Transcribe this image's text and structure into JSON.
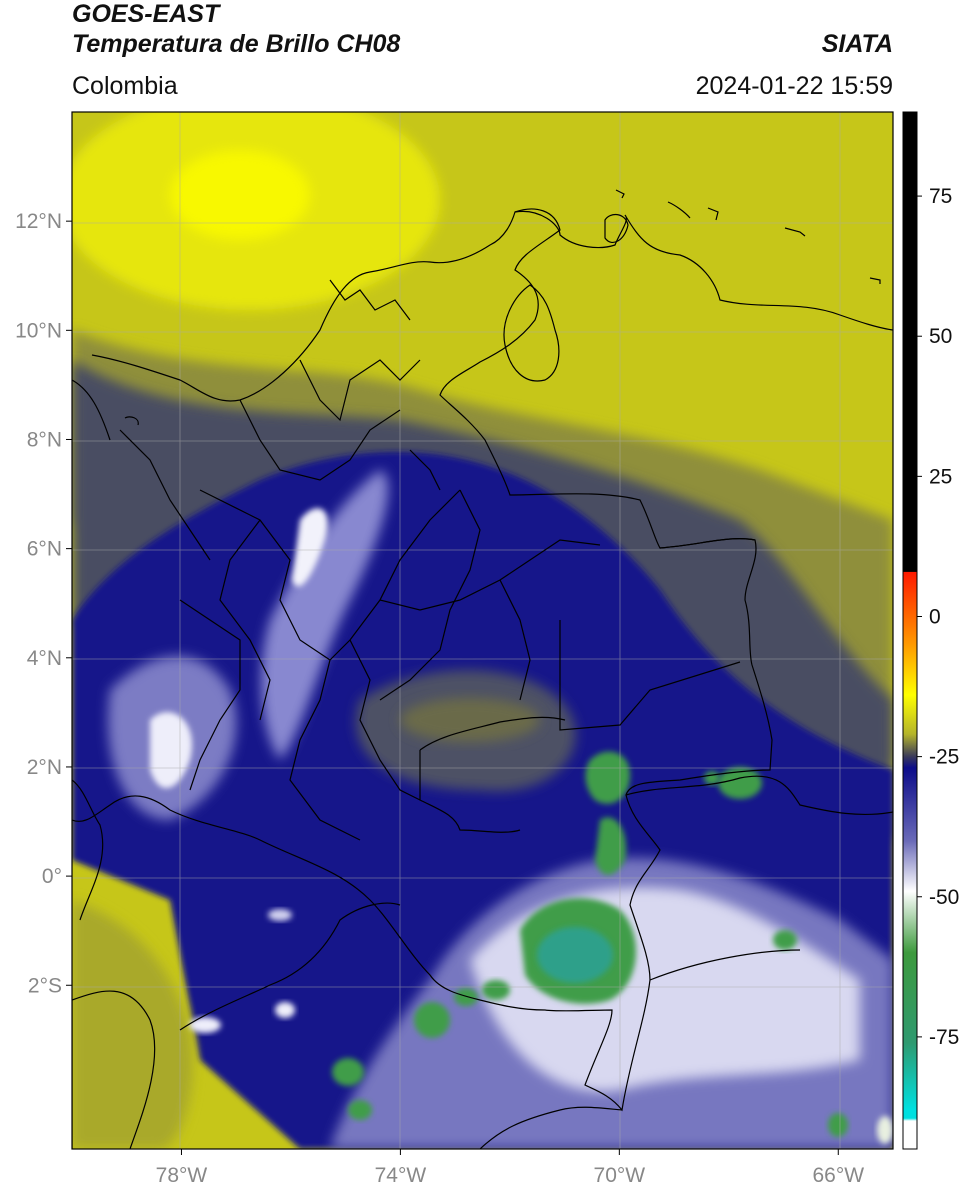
{
  "header": {
    "satellite": "GOES-EAST",
    "product": "Temperatura de Brillo CH08",
    "region": "Colombia",
    "agency": "SIATA",
    "datetime": "2024-01-22 15:59"
  },
  "axes": {
    "lat_ticks": [
      {
        "value": 12,
        "label": "12°N"
      },
      {
        "value": 10,
        "label": "10°N"
      },
      {
        "value": 8,
        "label": "8°N"
      },
      {
        "value": 6,
        "label": "6°N"
      },
      {
        "value": 4,
        "label": "4°N"
      },
      {
        "value": 2,
        "label": "2°N"
      },
      {
        "value": 0,
        "label": "0°"
      },
      {
        "value": -2,
        "label": "2°S"
      }
    ],
    "lon_ticks": [
      {
        "value": -78,
        "label": "78°W"
      },
      {
        "value": -74,
        "label": "74°W"
      },
      {
        "value": -70,
        "label": "70°W"
      },
      {
        "value": -66,
        "label": "66°W"
      }
    ],
    "lon_range": [
      -80,
      -65
    ],
    "lat_range": [
      -5,
      14
    ]
  },
  "colorbar": {
    "range": [
      -95,
      90
    ],
    "ticks": [
      {
        "value": 75,
        "label": "75"
      },
      {
        "value": 50,
        "label": "50"
      },
      {
        "value": 25,
        "label": "25"
      },
      {
        "value": 0,
        "label": "0"
      },
      {
        "value": -25,
        "label": "-25"
      },
      {
        "value": -50,
        "label": "-50"
      },
      {
        "value": -75,
        "label": "-75"
      }
    ],
    "stops": [
      {
        "value": 90,
        "color": "#000000"
      },
      {
        "value": 8,
        "color": "#000000"
      },
      {
        "value": 7.9,
        "color": "#ff1a00"
      },
      {
        "value": -5,
        "color": "#ff9a00"
      },
      {
        "value": -14,
        "color": "#ffff00"
      },
      {
        "value": -21,
        "color": "#b4b42a"
      },
      {
        "value": -25,
        "color": "#3a3a5a"
      },
      {
        "value": -27,
        "color": "#0c0c8a"
      },
      {
        "value": -40,
        "color": "#6a6ab8"
      },
      {
        "value": -49,
        "color": "#ffffff"
      },
      {
        "value": -60,
        "color": "#3d9a3d"
      },
      {
        "value": -76,
        "color": "#2f9a70"
      },
      {
        "value": -88,
        "color": "#00e0e0"
      },
      {
        "value": -89.5,
        "color": "#00e0e0"
      },
      {
        "value": -90,
        "color": "#ffffff"
      },
      {
        "value": -95,
        "color": "#ffffff"
      }
    ]
  },
  "colors": {
    "yellow_bright": "#f7f700",
    "yellow_olive": "#c8c81a",
    "olive_gray": "#7e7e55",
    "slate": "#3f4466",
    "deep_blue": "#13138c",
    "lavender": "#8a8ace",
    "white": "#f4f4fa",
    "green": "#3c9a42",
    "teal": "#2fa08a",
    "border": "#000000",
    "grid": "#aaaaaa"
  }
}
